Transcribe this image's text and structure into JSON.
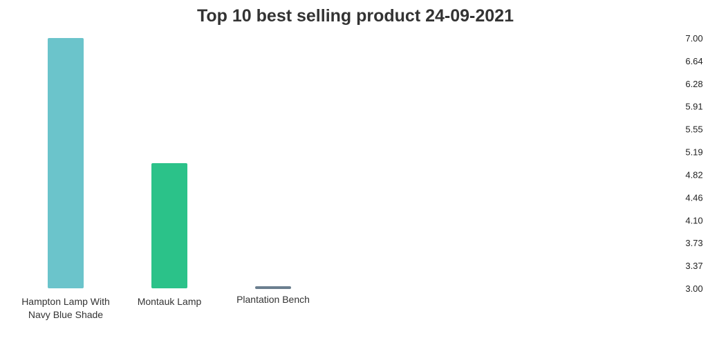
{
  "chart_data": {
    "type": "bar",
    "title": "Top 10 best selling product 24-09-2021",
    "categories": [
      [
        "Hampton Lamp With",
        "Navy Blue Shade"
      ],
      [
        "Montauk Lamp"
      ],
      [
        "Plantation Bench"
      ]
    ],
    "values": [
      7,
      5,
      3
    ],
    "bar_colors": [
      "#6bc4cb",
      "#2bc289",
      "#6b7f8f"
    ],
    "ylim": [
      3.0,
      7.0
    ],
    "yticks": [
      "7.00",
      "6.64",
      "6.28",
      "5.91",
      "5.55",
      "5.19",
      "4.82",
      "4.46",
      "4.10",
      "3.73",
      "3.37",
      "3.00"
    ],
    "y_axis_position": "right",
    "xlabel": "",
    "ylabel": "",
    "grid": false,
    "legend": "none"
  }
}
